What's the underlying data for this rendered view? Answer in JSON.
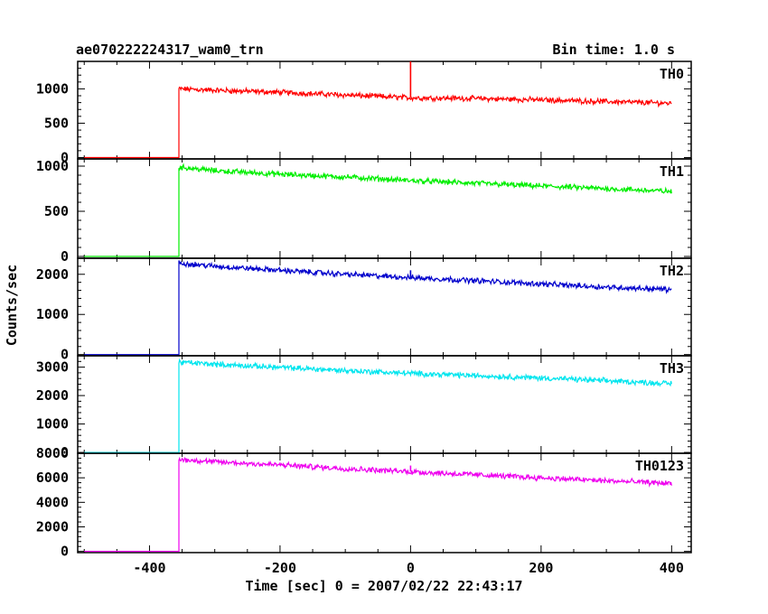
{
  "header": {
    "title": "ae070222224317_wam0_trn",
    "bin_time": "Bin time: 1.0 s"
  },
  "chart_data": {
    "type": "line",
    "xlabel": "Time [sec] 0 = 2007/02/22 22:43:17",
    "ylabel": "Counts/sec",
    "xlim": [
      -510,
      430
    ],
    "xticks": [
      -400,
      -200,
      0,
      200,
      400
    ],
    "trigger_time": -355,
    "end_time": 400,
    "panels": [
      {
        "name": "TH0",
        "color": "#ff0000",
        "ylim": [
          -20,
          1400
        ],
        "yticks": [
          0,
          500,
          1000
        ],
        "pre_trigger_level": 0,
        "series": {
          "x": [
            -355,
            -300,
            -200,
            -100,
            0,
            100,
            200,
            300,
            400
          ],
          "y": [
            1000,
            980,
            950,
            910,
            870,
            860,
            840,
            815,
            790
          ]
        },
        "spikes": [
          {
            "x": 0,
            "y": 1400
          }
        ]
      },
      {
        "name": "TH1",
        "color": "#00ee00",
        "ylim": [
          -20,
          1080
        ],
        "yticks": [
          0,
          500,
          1000
        ],
        "pre_trigger_level": 0,
        "series": {
          "x": [
            -355,
            -300,
            -200,
            -100,
            0,
            100,
            200,
            300,
            400
          ],
          "y": [
            990,
            950,
            910,
            880,
            840,
            810,
            780,
            750,
            720
          ]
        },
        "spikes": []
      },
      {
        "name": "TH2",
        "color": "#0000cc",
        "ylim": [
          -30,
          2400
        ],
        "yticks": [
          0,
          1000,
          2000
        ],
        "pre_trigger_level": 0,
        "series": {
          "x": [
            -355,
            -300,
            -200,
            -100,
            0,
            100,
            200,
            300,
            400
          ],
          "y": [
            2280,
            2200,
            2100,
            2000,
            1920,
            1840,
            1760,
            1680,
            1620
          ]
        },
        "spikes": [
          {
            "x": 0,
            "y": 2100
          }
        ]
      },
      {
        "name": "TH3",
        "color": "#00e5ee",
        "ylim": [
          -30,
          3400
        ],
        "yticks": [
          0,
          1000,
          2000,
          3000
        ],
        "pre_trigger_level": 0,
        "series": {
          "x": [
            -355,
            -300,
            -200,
            -100,
            0,
            100,
            200,
            300,
            400
          ],
          "y": [
            3180,
            3100,
            2990,
            2880,
            2780,
            2700,
            2620,
            2520,
            2420
          ]
        },
        "spikes": []
      },
      {
        "name": "TH0123",
        "color": "#ee00ee",
        "ylim": [
          -100,
          8000
        ],
        "yticks": [
          0,
          2000,
          4000,
          6000,
          8000
        ],
        "pre_trigger_level": 0,
        "series": {
          "x": [
            -355,
            -300,
            -200,
            -100,
            0,
            100,
            200,
            300,
            400
          ],
          "y": [
            7500,
            7300,
            7050,
            6750,
            6500,
            6250,
            6000,
            5750,
            5550
          ]
        },
        "spikes": [
          {
            "x": 0,
            "y": 7000
          }
        ]
      }
    ]
  }
}
